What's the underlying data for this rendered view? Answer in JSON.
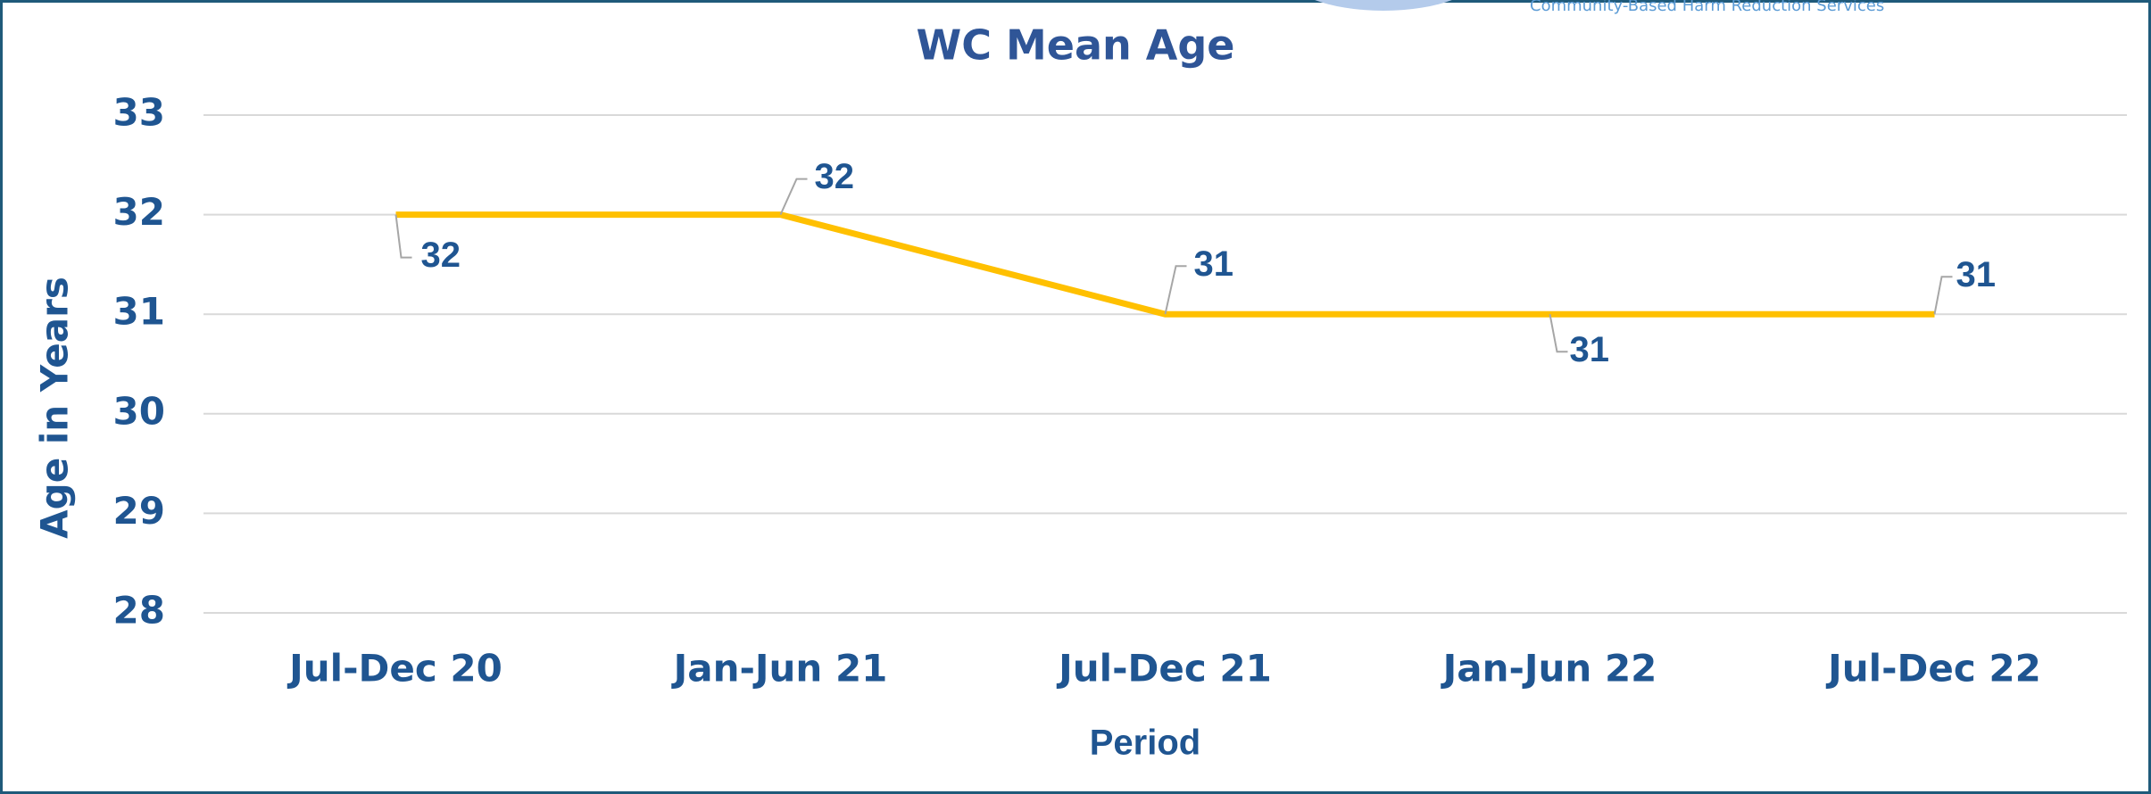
{
  "header_text": "Community-Based Harm Reduction Services",
  "chart_data": {
    "type": "line",
    "title": "WC Mean Age",
    "x_label": "Period",
    "y_label": "Age in Years",
    "categories": [
      "Jul-Dec 20",
      "Jan-Jun 21",
      "Jul-Dec 21",
      "Jan-Jun 22",
      "Jul-Dec 22"
    ],
    "values": [
      32,
      32,
      31,
      31,
      31
    ],
    "color": "#ffc000",
    "ylim": [
      28,
      33
    ],
    "yticks": [
      28,
      29,
      30,
      31,
      32,
      33
    ],
    "grid": true
  }
}
